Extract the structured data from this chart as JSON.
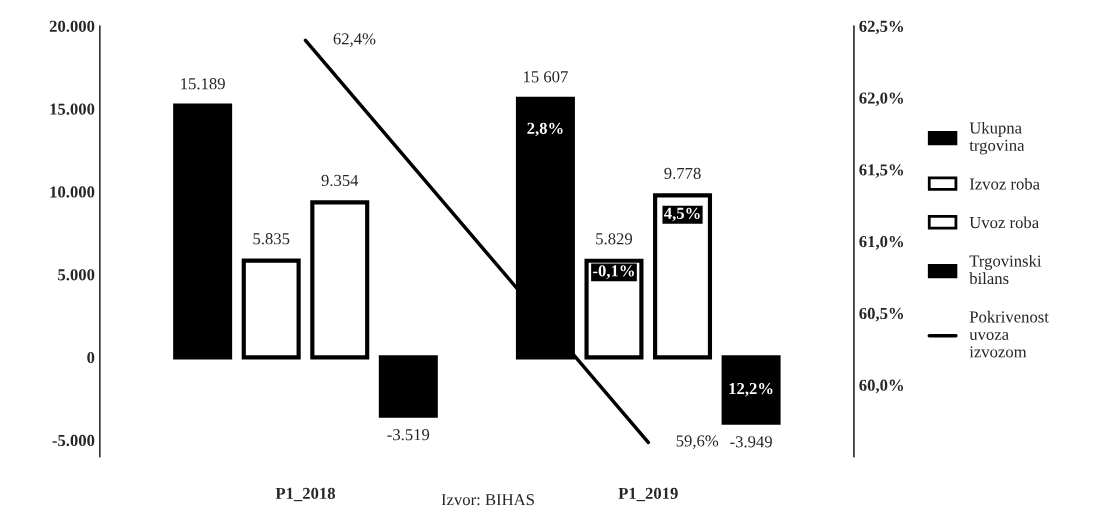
{
  "chart_data": {
    "type": "bar",
    "categories": [
      "P1_2018",
      "P1_2019"
    ],
    "series": [
      {
        "name": "Ukupna trgovina",
        "color": "#000000",
        "values": [
          15189,
          15607
        ],
        "value_labels": [
          "15.189",
          "15 607"
        ]
      },
      {
        "name": "Izvoz roba",
        "color": "#ffffff",
        "values": [
          5835,
          5829
        ],
        "value_labels": [
          "5.835",
          "5.829"
        ]
      },
      {
        "name": "Uvoz roba",
        "color": "#ffffff",
        "values": [
          9354,
          9778
        ],
        "value_labels": [
          "9.354",
          "9.778"
        ]
      },
      {
        "name": "Trgovinski bilans",
        "color": "#000000",
        "values": [
          -3519,
          -3949
        ],
        "value_labels": [
          "-3.519",
          "-3.949"
        ]
      },
      {
        "name": "Pokrivenost uvoza izvozom",
        "type": "line",
        "axis": "y2",
        "color": "#000000",
        "values": [
          62.4,
          59.6
        ],
        "value_labels": [
          "62,4%",
          "59,6%"
        ]
      }
    ],
    "ylim": [
      -6000,
      20000
    ],
    "yticks": [
      {
        "value": -5000,
        "label": "-5.000"
      },
      {
        "value": 0,
        "label": "0"
      },
      {
        "value": 5000,
        "label": "5.000"
      },
      {
        "value": 10000,
        "label": "10.000"
      },
      {
        "value": 15000,
        "label": "15.000"
      },
      {
        "value": 20000,
        "label": "20.000"
      }
    ],
    "y2lim": [
      59.5,
      62.5
    ],
    "y2ticks": [
      {
        "value": 60,
        "label": "60,0%"
      },
      {
        "value": 60.5,
        "label": "60,5%"
      },
      {
        "value": 61,
        "label": "61,0%"
      },
      {
        "value": 61.5,
        "label": "61,5%"
      },
      {
        "value": 62,
        "label": "62,0%"
      },
      {
        "value": 62.5,
        "label": "62,5%"
      }
    ],
    "annotations": [
      "2,8%",
      "-0,1%",
      "4,5%",
      "12,2%",
      "Izvor: BIHAS"
    ],
    "grid": false,
    "legend": "right"
  }
}
